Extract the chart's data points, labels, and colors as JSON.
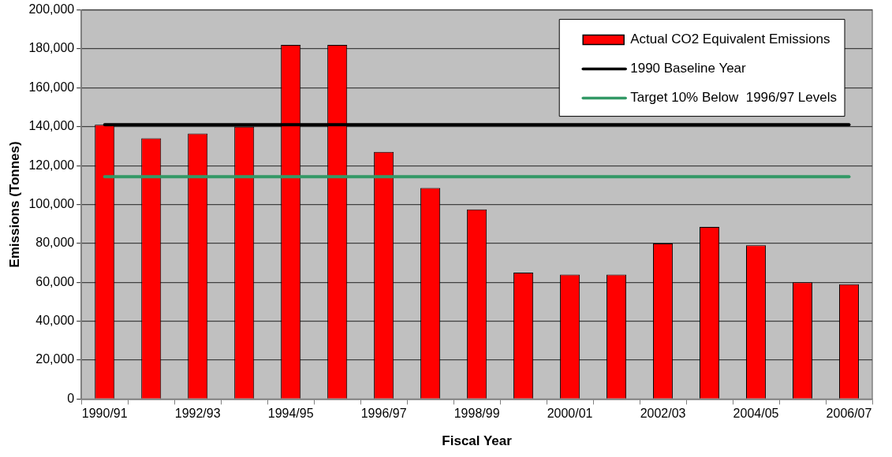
{
  "chart_data": {
    "type": "bar",
    "xlabel": "Fiscal Year",
    "ylabel": "Emissions (Tonnes)",
    "categories": [
      "1990/91",
      null,
      "1992/93",
      null,
      "1994/95",
      null,
      "1996/97",
      null,
      "1998/99",
      null,
      "2000/01",
      null,
      "2002/03",
      null,
      "2004/05",
      null,
      "2006/07"
    ],
    "series": [
      {
        "name": "Actual CO2 Equivalent Emissions",
        "color": "#ff0000",
        "values": [
          141000,
          134000,
          136500,
          140000,
          182000,
          182000,
          127000,
          108500,
          97500,
          65000,
          64000,
          64000,
          80000,
          88500,
          79000,
          60000,
          59000
        ]
      },
      {
        "name": "1990 Baseline Year",
        "type": "line",
        "color": "#000000",
        "values": [
          141000,
          141000,
          141000,
          141000,
          141000,
          141000,
          141000,
          141000,
          141000,
          141000,
          141000,
          141000,
          141000,
          141000,
          141000,
          141000,
          141000
        ]
      },
      {
        "name": "Target 10% Below  1996/97 Levels",
        "type": "line",
        "color": "#339966",
        "values": [
          114300,
          114300,
          114300,
          114300,
          114300,
          114300,
          114300,
          114300,
          114300,
          114300,
          114300,
          114300,
          114300,
          114300,
          114300,
          114300,
          114300
        ]
      }
    ],
    "ylim": [
      0,
      200000
    ],
    "yticks": [
      0,
      {
        "value": 20000,
        "label": "20,000"
      },
      {
        "value": 40000,
        "label": "40,000"
      },
      {
        "value": 60000,
        "label": "60,000"
      },
      {
        "value": 80000,
        "label": "80,000"
      },
      {
        "value": 100000,
        "label": "100,000"
      },
      {
        "value": 120000,
        "label": "120,000"
      },
      {
        "value": 140000,
        "label": "140,000"
      },
      {
        "value": 160000,
        "label": "160,000"
      },
      {
        "value": 180000,
        "label": "180,000"
      },
      {
        "value": 200000,
        "label": "200,000"
      }
    ],
    "grid": "y",
    "legend": "top right",
    "marker": "none"
  }
}
